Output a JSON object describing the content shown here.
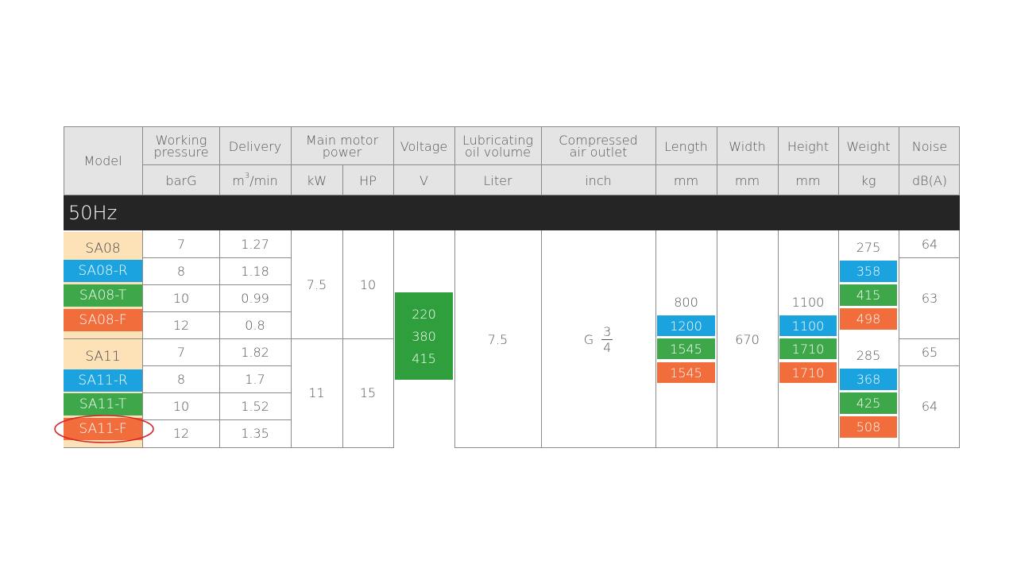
{
  "colors": {
    "header_bg": "#e4e4e4",
    "band_bg": "#252525",
    "base": "#fde2b8",
    "r": "#1ba3e0",
    "t": "#3ea74a",
    "f": "#f26d3c",
    "highlight_ellipse": "#d8262a"
  },
  "headers": {
    "model": "Model",
    "working_pressure": "Working pressure",
    "delivery": "Delivery",
    "motor_power": "Main motor power",
    "voltage": "Voltage",
    "lub_oil": "Lubricating oil volume",
    "air_outlet": "Compressed air outlet",
    "length": "Length",
    "width": "Width",
    "height": "Height",
    "weight": "Weight",
    "noise": "Noise"
  },
  "units": {
    "pressure": "barG",
    "delivery_pre": "m",
    "delivery_sup": "3",
    "delivery_post": "/min",
    "kw": "kW",
    "hp": "HP",
    "voltage": "V",
    "lub": "Liter",
    "outlet": "inch",
    "length": "mm",
    "width": "mm",
    "height": "mm",
    "weight": "kg",
    "noise": "dB(A)"
  },
  "band": "50Hz",
  "models": [
    {
      "name": "SA08",
      "pressure": "7",
      "delivery": "1.27"
    },
    {
      "name": "SA08-R",
      "pressure": "8",
      "delivery": "1.18"
    },
    {
      "name": "SA08-T",
      "pressure": "10",
      "delivery": "0.99"
    },
    {
      "name": "SA08-F",
      "pressure": "12",
      "delivery": "0.8"
    },
    {
      "name": "SA11",
      "pressure": "7",
      "delivery": "1.82"
    },
    {
      "name": "SA11-R",
      "pressure": "8",
      "delivery": "1.7"
    },
    {
      "name": "SA11-T",
      "pressure": "10",
      "delivery": "1.52"
    },
    {
      "name": "SA11-F",
      "pressure": "12",
      "delivery": "1.35"
    }
  ],
  "power": {
    "sa08": {
      "kw": "7.5",
      "hp": "10"
    },
    "sa11": {
      "kw": "11",
      "hp": "15"
    }
  },
  "voltage": [
    "220",
    "380",
    "415"
  ],
  "lub_oil": "7.5",
  "outlet": {
    "prefix": "G",
    "num": "3",
    "den": "4"
  },
  "length": [
    "800",
    "1200",
    "1545",
    "1545"
  ],
  "width": "670",
  "height": [
    "1100",
    "1100",
    "1710",
    "1710"
  ],
  "weight": {
    "sa08": [
      "275",
      "358",
      "415",
      "498"
    ],
    "sa11": [
      "285",
      "368",
      "425",
      "508"
    ]
  },
  "noise": {
    "sa08_base": "64",
    "sa08_variants": "63",
    "sa11_base": "65",
    "sa11_variants": "64"
  }
}
